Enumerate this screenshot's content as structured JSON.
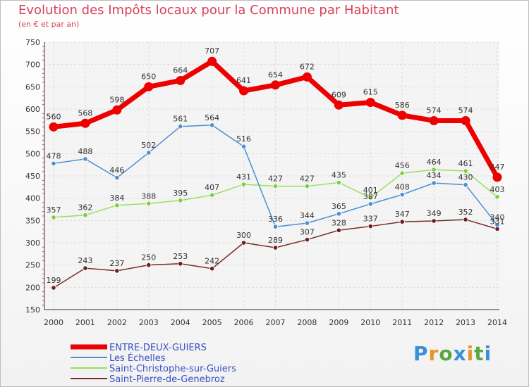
{
  "header": {
    "title": "Evolution des Impôts locaux pour la Commune par Habitant",
    "subtitle": "(en € et par an)"
  },
  "logo": {
    "text": "Proxiti",
    "letter_colors": [
      "#3a8fd6",
      "#e8932a",
      "#5aa83a",
      "#3a8fd6",
      "#e8932a",
      "#5aa83a",
      "#3a8fd6"
    ]
  },
  "chart_data": {
    "type": "line",
    "title": "Evolution des Impôts locaux pour la Commune par Habitant",
    "subtitle": "(en € et par an)",
    "xlabel": "",
    "ylabel": "",
    "x": [
      "2000",
      "2001",
      "2002",
      "2003",
      "2004",
      "2005",
      "2006",
      "2007",
      "2008",
      "2009",
      "2010",
      "2011",
      "2012",
      "2013",
      "2014"
    ],
    "ylim": [
      150,
      750
    ],
    "yticks": [
      150,
      200,
      250,
      300,
      350,
      400,
      450,
      500,
      550,
      600,
      650,
      700,
      750
    ],
    "grid": true,
    "legend_position": "bottom-left",
    "series": [
      {
        "name": "ENTRE-DEUX-GUIERS",
        "color": "#ee0000",
        "marker_color": "#ee0000",
        "values": [
          560,
          568,
          598,
          650,
          664,
          707,
          641,
          654,
          672,
          609,
          615,
          586,
          574,
          574,
          447
        ]
      },
      {
        "name": "Les Échelles",
        "color": "#4b8fd0",
        "marker_color": "#4b8fd0",
        "values": [
          478,
          488,
          446,
          502,
          561,
          564,
          516,
          336,
          344,
          365,
          387,
          408,
          434,
          430,
          340
        ]
      },
      {
        "name": "Saint-Christophe-sur-Guiers",
        "color": "#9be05a",
        "marker_color": "#7ccf3a",
        "values": [
          357,
          362,
          384,
          388,
          395,
          407,
          431,
          427,
          427,
          435,
          401,
          456,
          464,
          461,
          403
        ]
      },
      {
        "name": "Saint-Pierre-de-Genebroz",
        "color": "#7a2b2b",
        "marker_color": "#6b1f1f",
        "values": [
          199,
          243,
          237,
          250,
          253,
          242,
          300,
          289,
          307,
          328,
          337,
          347,
          349,
          352,
          331
        ]
      }
    ]
  }
}
